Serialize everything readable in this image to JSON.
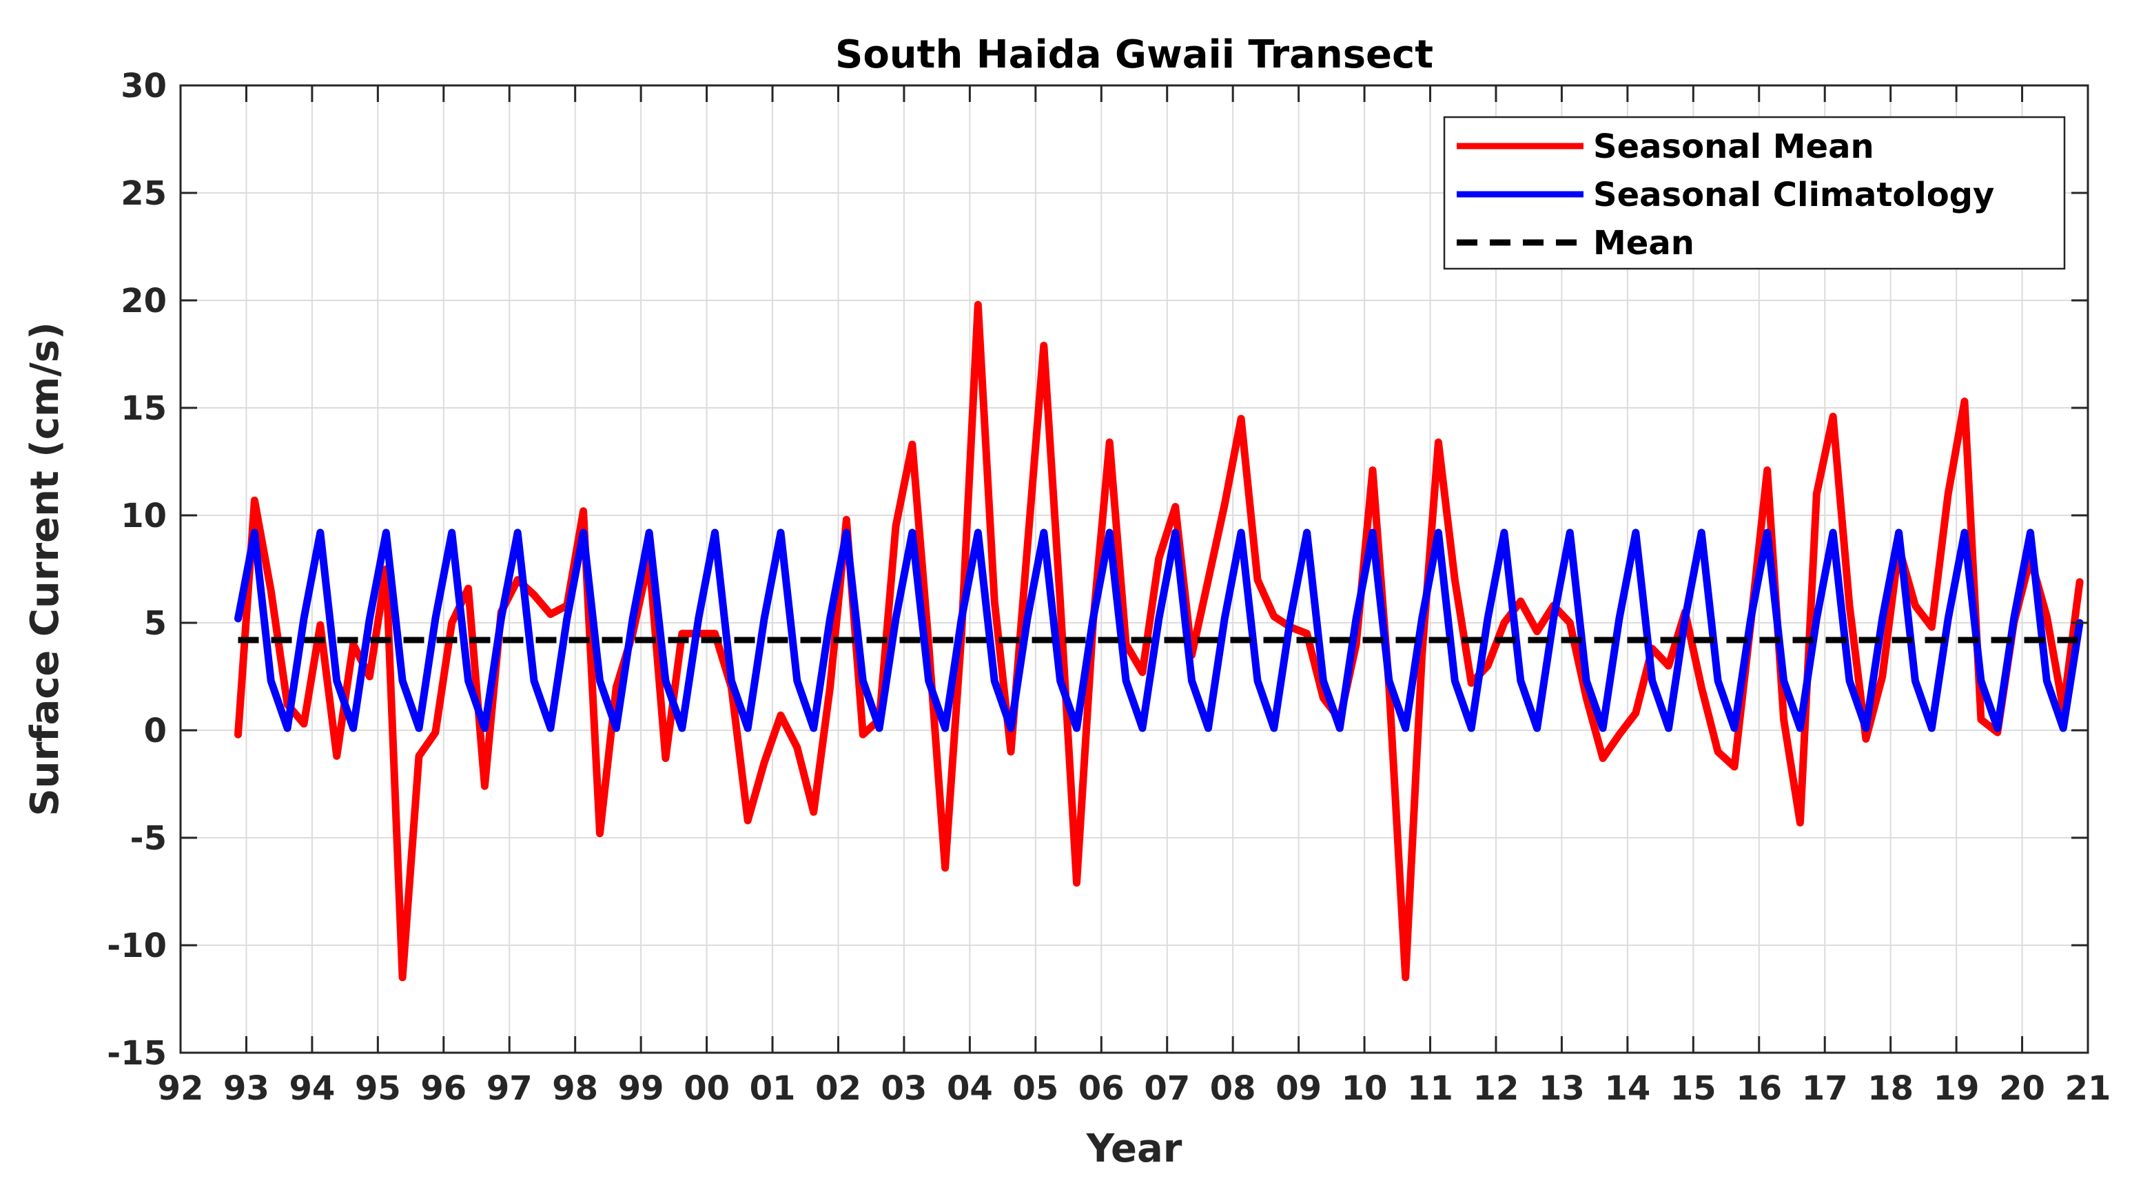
{
  "chart_data": {
    "type": "line",
    "title": "South Haida Gwaii Transect",
    "xlabel": "Year",
    "ylabel": "Surface Current (cm/s)",
    "xlim": [
      1992,
      2021
    ],
    "ylim": [
      -15,
      30
    ],
    "x_ticks": [
      1992,
      1993,
      1994,
      1995,
      1996,
      1997,
      1998,
      1999,
      2000,
      2001,
      2002,
      2003,
      2004,
      2005,
      2006,
      2007,
      2008,
      2009,
      2010,
      2011,
      2012,
      2013,
      2014,
      2015,
      2016,
      2017,
      2018,
      2019,
      2020,
      2021
    ],
    "x_tick_labels": [
      "92",
      "93",
      "94",
      "95",
      "96",
      "97",
      "98",
      "99",
      "00",
      "01",
      "02",
      "03",
      "04",
      "05",
      "06",
      "07",
      "08",
      "09",
      "10",
      "11",
      "12",
      "13",
      "14",
      "15",
      "16",
      "17",
      "18",
      "19",
      "20",
      "21"
    ],
    "y_ticks": [
      -15,
      -10,
      -5,
      0,
      5,
      10,
      15,
      20,
      25,
      30
    ],
    "y_tick_labels": [
      "-15",
      "-10",
      "-5",
      "0",
      "5",
      "10",
      "15",
      "20",
      "25",
      "30"
    ],
    "grid": true,
    "legend_position": "top-right",
    "series": [
      {
        "name": "Seasonal Mean",
        "color": "#ff0000",
        "x": [
          1992.875,
          1993.125,
          1993.375,
          1993.625,
          1993.875,
          1994.125,
          1994.375,
          1994.625,
          1994.875,
          1995.125,
          1995.375,
          1995.625,
          1995.875,
          1996.125,
          1996.375,
          1996.625,
          1996.875,
          1997.125,
          1997.375,
          1997.625,
          1997.875,
          1998.125,
          1998.375,
          1998.625,
          1998.875,
          1999.125,
          1999.375,
          1999.625,
          1999.875,
          2000.125,
          2000.375,
          2000.625,
          2000.875,
          2001.125,
          2001.375,
          2001.625,
          2001.875,
          2002.125,
          2002.375,
          2002.625,
          2002.875,
          2003.125,
          2003.375,
          2003.625,
          2003.875,
          2004.125,
          2004.375,
          2004.625,
          2004.875,
          2005.125,
          2005.375,
          2005.625,
          2005.875,
          2006.125,
          2006.375,
          2006.625,
          2006.875,
          2007.125,
          2007.375,
          2007.625,
          2007.875,
          2008.125,
          2008.375,
          2008.625,
          2008.875,
          2009.125,
          2009.375,
          2009.625,
          2009.875,
          2010.125,
          2010.375,
          2010.625,
          2010.875,
          2011.125,
          2011.375,
          2011.625,
          2011.875,
          2012.125,
          2012.375,
          2012.625,
          2012.875,
          2013.125,
          2013.375,
          2013.625,
          2013.875,
          2014.125,
          2014.375,
          2014.625,
          2014.875,
          2015.125,
          2015.375,
          2015.625,
          2015.875,
          2016.125,
          2016.375,
          2016.625,
          2016.875,
          2017.125,
          2017.375,
          2017.625,
          2017.875,
          2018.125,
          2018.375,
          2018.625,
          2018.875,
          2019.125,
          2019.375,
          2019.625,
          2019.875,
          2020.125,
          2020.375,
          2020.625,
          2020.875
        ],
        "values": [
          -0.2,
          10.7,
          6.5,
          1.2,
          0.3,
          4.9,
          -1.2,
          4.0,
          2.5,
          7.5,
          -11.5,
          -1.2,
          -0.1,
          5.0,
          6.6,
          -2.6,
          5.5,
          7.0,
          6.3,
          5.4,
          5.8,
          10.2,
          -4.8,
          2.0,
          4.5,
          8.0,
          -1.3,
          4.5,
          4.5,
          4.5,
          2.0,
          -4.2,
          -1.5,
          0.7,
          -0.8,
          -3.8,
          2.0,
          9.8,
          -0.2,
          0.5,
          9.5,
          13.3,
          4.0,
          -6.4,
          4.5,
          19.8,
          6.0,
          -1.0,
          8.5,
          17.9,
          6.0,
          -7.1,
          5.0,
          13.4,
          4.0,
          2.7,
          8.0,
          10.4,
          3.5,
          7.0,
          10.5,
          14.5,
          7.0,
          5.3,
          4.8,
          4.5,
          1.5,
          0.5,
          4.0,
          12.1,
          2.0,
          -11.5,
          3.5,
          13.4,
          7.0,
          2.2,
          3.0,
          5.0,
          6.0,
          4.6,
          5.8,
          5.0,
          1.5,
          -1.3,
          -0.2,
          0.8,
          3.8,
          3.0,
          5.5,
          2.0,
          -1.0,
          -1.7,
          5.0,
          12.1,
          0.5,
          -4.3,
          11.0,
          14.6,
          5.8,
          -0.4,
          2.5,
          8.5,
          5.8,
          4.8,
          11.0,
          15.3,
          0.5,
          -0.1,
          5.0,
          8.0,
          5.3,
          1.0,
          6.9
        ]
      },
      {
        "name": "Seasonal Climatology",
        "color": "#0000ff",
        "x": [
          1992.875,
          1993.125,
          1993.375,
          1993.625,
          1993.875,
          1994.125,
          1994.375,
          1994.625,
          1994.875,
          1995.125,
          1995.375,
          1995.625,
          1995.875,
          1996.125,
          1996.375,
          1996.625,
          1996.875,
          1997.125,
          1997.375,
          1997.625,
          1997.875,
          1998.125,
          1998.375,
          1998.625,
          1998.875,
          1999.125,
          1999.375,
          1999.625,
          1999.875,
          2000.125,
          2000.375,
          2000.625,
          2000.875,
          2001.125,
          2001.375,
          2001.625,
          2001.875,
          2002.125,
          2002.375,
          2002.625,
          2002.875,
          2003.125,
          2003.375,
          2003.625,
          2003.875,
          2004.125,
          2004.375,
          2004.625,
          2004.875,
          2005.125,
          2005.375,
          2005.625,
          2005.875,
          2006.125,
          2006.375,
          2006.625,
          2006.875,
          2007.125,
          2007.375,
          2007.625,
          2007.875,
          2008.125,
          2008.375,
          2008.625,
          2008.875,
          2009.125,
          2009.375,
          2009.625,
          2009.875,
          2010.125,
          2010.375,
          2010.625,
          2010.875,
          2011.125,
          2011.375,
          2011.625,
          2011.875,
          2012.125,
          2012.375,
          2012.625,
          2012.875,
          2013.125,
          2013.375,
          2013.625,
          2013.875,
          2014.125,
          2014.375,
          2014.625,
          2014.875,
          2015.125,
          2015.375,
          2015.625,
          2015.875,
          2016.125,
          2016.375,
          2016.625,
          2016.875,
          2017.125,
          2017.375,
          2017.625,
          2017.875,
          2018.125,
          2018.375,
          2018.625,
          2018.875,
          2019.125,
          2019.375,
          2019.625,
          2019.875,
          2020.125,
          2020.375,
          2020.625,
          2020.875
        ],
        "values": [
          5.2,
          9.2,
          2.3,
          0.1,
          5.2,
          9.2,
          2.3,
          0.1,
          5.2,
          9.2,
          2.3,
          0.1,
          5.2,
          9.2,
          2.3,
          0.1,
          5.2,
          9.2,
          2.3,
          0.1,
          5.2,
          9.2,
          2.3,
          0.1,
          5.2,
          9.2,
          2.3,
          0.1,
          5.2,
          9.2,
          2.3,
          0.1,
          5.2,
          9.2,
          2.3,
          0.1,
          5.2,
          9.2,
          2.3,
          0.1,
          5.2,
          9.2,
          2.3,
          0.1,
          5.2,
          9.2,
          2.3,
          0.1,
          5.2,
          9.2,
          2.3,
          0.1,
          5.2,
          9.2,
          2.3,
          0.1,
          5.2,
          9.2,
          2.3,
          0.1,
          5.2,
          9.2,
          2.3,
          0.1,
          5.2,
          9.2,
          2.3,
          0.1,
          5.2,
          9.2,
          2.3,
          0.1,
          5.2,
          9.2,
          2.3,
          0.1,
          5.2,
          9.2,
          2.3,
          0.1,
          5.2,
          9.2,
          2.3,
          0.1,
          5.2,
          9.2,
          2.3,
          0.1,
          5.2,
          9.2,
          2.3,
          0.1,
          5.2,
          9.2,
          2.3,
          0.1,
          5.2,
          9.2,
          2.3,
          0.1,
          5.2,
          9.2,
          2.3,
          0.1,
          5.2,
          9.2,
          2.3,
          0.1,
          5.2,
          9.2,
          2.3,
          0.1,
          5.0
        ]
      },
      {
        "name": "Mean",
        "color": "#000000",
        "style": "dashed",
        "x": [
          1992.875,
          2021
        ],
        "values": [
          4.2,
          4.2
        ]
      }
    ]
  }
}
